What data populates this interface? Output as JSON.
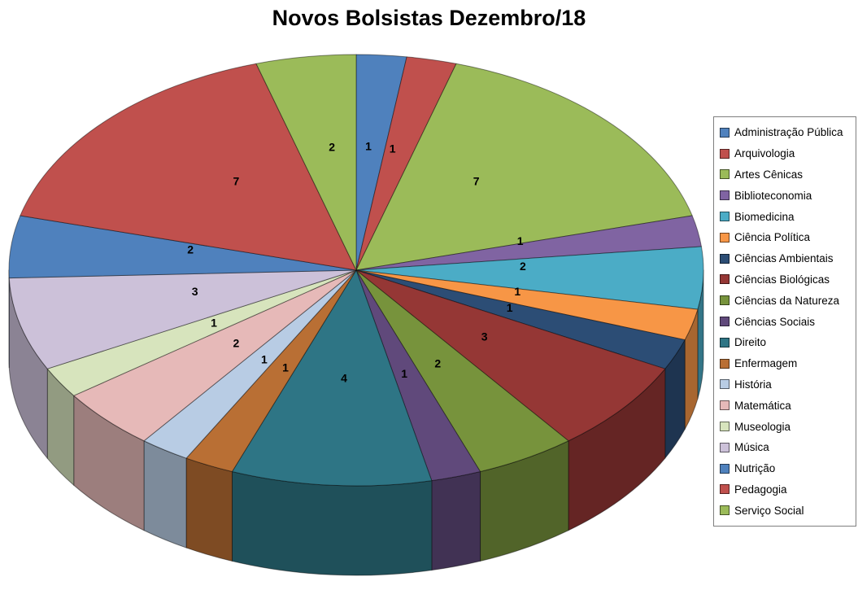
{
  "chart_data": {
    "type": "pie",
    "style": "pie-3d",
    "title": "Novos Bolsistas Dezembro/18",
    "legend_position": "right",
    "data_labels": "values",
    "labels": [
      "Administração Pública",
      "Arquivologia",
      "Artes Cênicas",
      "Biblioteconomia",
      "Biomedicina",
      "Ciência Política",
      "Ciências Ambientais",
      "Ciências Biológicas",
      "Ciências da Natureza",
      "Ciências Sociais",
      "Direito",
      "Enfermagem",
      "História",
      "Matemática",
      "Museologia",
      "Música",
      "Nutrição",
      "Pedagogia",
      "Serviço Social"
    ],
    "values": [
      1,
      1,
      7,
      1,
      2,
      1,
      1,
      3,
      2,
      1,
      4,
      1,
      1,
      2,
      1,
      3,
      2,
      7,
      2
    ],
    "colors": [
      "#4F81BD",
      "#C0504D",
      "#9BBB59",
      "#8064A2",
      "#4BACC6",
      "#F79646",
      "#2C4D75",
      "#953735",
      "#77933C",
      "#60497B",
      "#2E7585",
      "#B96F34",
      "#B8CCE4",
      "#E6B9B8",
      "#D7E4BD",
      "#CCC1D9",
      "#4F81BD",
      "#C0504D",
      "#9BBB59"
    ]
  }
}
